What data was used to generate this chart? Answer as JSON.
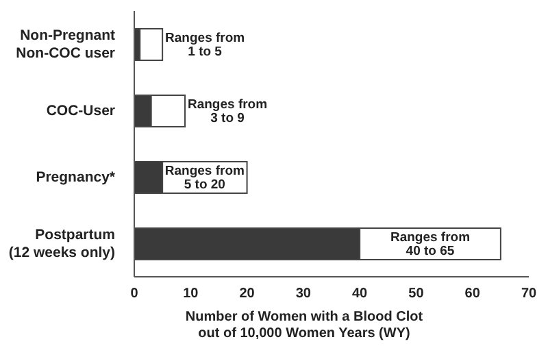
{
  "chart_data": {
    "type": "bar",
    "orientation": "horizontal",
    "stacked": true,
    "categories": [
      "Non-Pregnant\nNon-COC user",
      "COC-User",
      "Pregnancy*",
      "Postpartum\n(12 weeks only)"
    ],
    "series": [
      {
        "color": "#3a3a3a",
        "values": [
          1,
          3,
          5,
          40
        ]
      },
      {
        "color": "#ffffff",
        "values": [
          4,
          6,
          15,
          25
        ],
        "value_labels": [
          "Ranges from\n1 to 5",
          "Ranges from\n3 to 9",
          "Ranges from\n5 to 20",
          "Ranges from\n40 to 65"
        ]
      }
    ],
    "xlabel": "Number of Women with a Blood Clot\nout of 10,000 Women Years (WY)",
    "xlim": [
      0,
      70
    ],
    "xticks": [
      0,
      10,
      20,
      30,
      40,
      50,
      60,
      70
    ],
    "grid": false,
    "legend": false
  }
}
